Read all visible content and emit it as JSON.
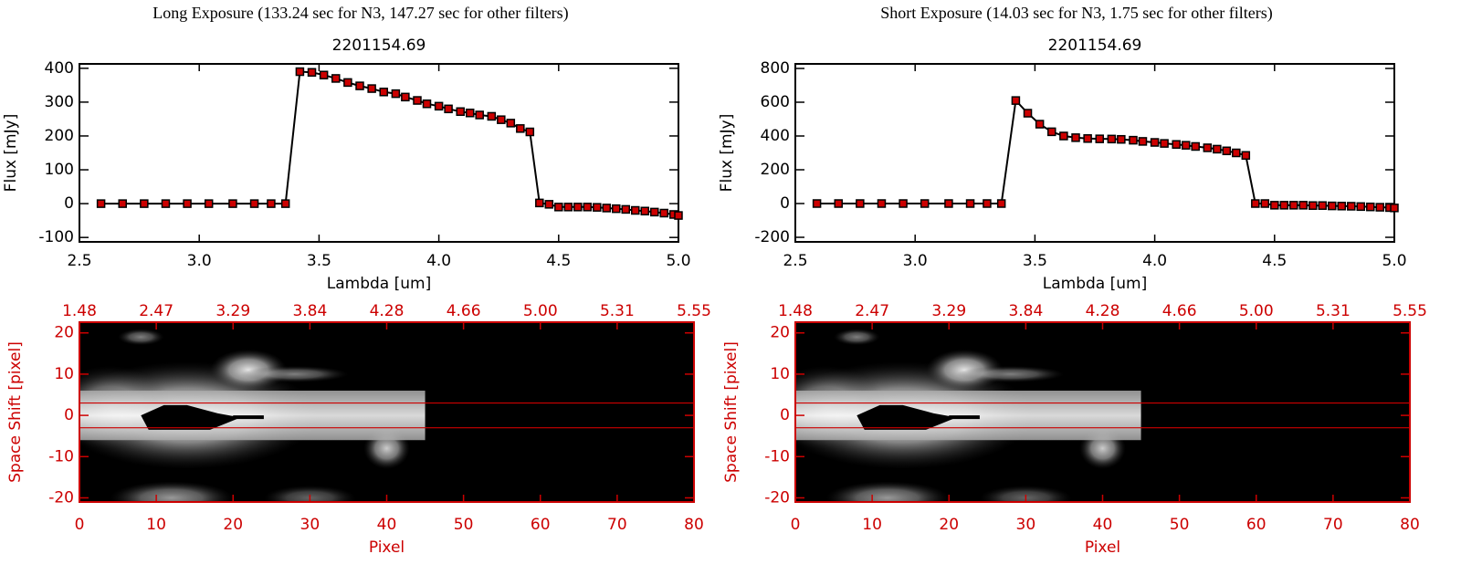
{
  "chart_data": [
    {
      "type": "line",
      "panel_title": "Long Exposure (133.24 sec for N3, 147.27 sec for other filters)",
      "title": "2201154.69",
      "xlabel": "Lambda [um]",
      "ylabel": "Flux [mJy]",
      "color": "#cc0000",
      "line_color": "#000000",
      "xlim": [
        2.5,
        5.0
      ],
      "xticks": [
        2.5,
        {
          "value": 3,
          "label": "3.0"
        },
        3.5,
        {
          "value": 4,
          "label": "4.0"
        },
        4.5,
        {
          "value": 5,
          "label": "5.0"
        }
      ],
      "ylim": [
        -113,
        413
      ],
      "yticks": [
        -100,
        0,
        100,
        200,
        300,
        400
      ],
      "x": [
        2.59,
        2.68,
        2.77,
        2.86,
        2.95,
        3.04,
        3.14,
        3.23,
        3.3,
        3.36,
        3.42,
        3.47,
        3.52,
        3.57,
        3.62,
        3.67,
        3.72,
        3.77,
        3.82,
        3.86,
        3.91,
        3.95,
        4.0,
        4.04,
        4.09,
        4.13,
        4.17,
        4.22,
        4.26,
        4.3,
        4.34,
        4.38,
        4.42,
        4.46,
        4.5,
        4.54,
        4.58,
        4.62,
        4.66,
        4.7,
        4.74,
        4.78,
        4.82,
        4.86,
        4.9,
        4.94,
        4.98,
        5.0
      ],
      "values": [
        0,
        0,
        0,
        0,
        0,
        0,
        0,
        0,
        0,
        0,
        390,
        388,
        380,
        370,
        358,
        348,
        340,
        330,
        325,
        315,
        305,
        295,
        288,
        280,
        272,
        268,
        262,
        258,
        248,
        238,
        222,
        212,
        2,
        -2,
        -10,
        -10,
        -10,
        -10,
        -11,
        -13,
        -15,
        -17,
        -20,
        -22,
        -25,
        -28,
        -32,
        -35
      ]
    },
    {
      "type": "line",
      "panel_title": "Short Exposure (14.03 sec for N3, 1.75 sec for other filters)",
      "title": "2201154.69",
      "xlabel": "Lambda [um]",
      "ylabel": "Flux [mJy]",
      "color": "#cc0000",
      "line_color": "#000000",
      "xlim": [
        2.5,
        5.0
      ],
      "xticks": [
        2.5,
        {
          "value": 3,
          "label": "3.0"
        },
        3.5,
        {
          "value": 4,
          "label": "4.0"
        },
        4.5,
        {
          "value": 5,
          "label": "5.0"
        }
      ],
      "ylim": [
        -227,
        827
      ],
      "yticks": [
        -200,
        0,
        200,
        400,
        600,
        800
      ],
      "x": [
        2.59,
        2.68,
        2.77,
        2.86,
        2.95,
        3.04,
        3.14,
        3.23,
        3.3,
        3.36,
        3.42,
        3.47,
        3.52,
        3.57,
        3.62,
        3.67,
        3.72,
        3.77,
        3.82,
        3.86,
        3.91,
        3.95,
        4.0,
        4.04,
        4.09,
        4.13,
        4.17,
        4.22,
        4.26,
        4.3,
        4.34,
        4.38,
        4.42,
        4.46,
        4.5,
        4.54,
        4.58,
        4.62,
        4.66,
        4.7,
        4.74,
        4.78,
        4.82,
        4.86,
        4.9,
        4.94,
        4.98,
        5.0
      ],
      "values": [
        0,
        0,
        0,
        0,
        0,
        0,
        0,
        0,
        0,
        0,
        610,
        535,
        470,
        425,
        400,
        390,
        385,
        383,
        382,
        380,
        375,
        368,
        362,
        356,
        350,
        345,
        338,
        330,
        322,
        312,
        300,
        285,
        0,
        0,
        -10,
        -10,
        -10,
        -10,
        -12,
        -12,
        -14,
        -15,
        -16,
        -18,
        -20,
        -22,
        -24,
        -26
      ]
    },
    {
      "type": "image",
      "xlabel": "Pixel",
      "ylabel": "Space Shift [pixel]",
      "color": "#cc0000",
      "xlim": [
        0,
        80
      ],
      "xticks": [
        0,
        10,
        20,
        30,
        40,
        50,
        60,
        70,
        80
      ],
      "x2ticks": [
        {
          "value": 0,
          "label": "1.48"
        },
        {
          "value": 10,
          "label": "2.47"
        },
        {
          "value": 20,
          "label": "3.29"
        },
        {
          "value": 30,
          "label": "3.84"
        },
        {
          "value": 40,
          "label": "4.28"
        },
        {
          "value": 50,
          "label": "4.66"
        },
        {
          "value": 60,
          "label": "5.00"
        },
        {
          "value": 70,
          "label": "5.31"
        },
        {
          "value": 80,
          "label": "5.55"
        }
      ],
      "ylim": [
        -21,
        22.6
      ],
      "yticks": [
        -20,
        -10,
        0,
        10,
        20
      ],
      "hlines": [
        3,
        -3
      ]
    },
    {
      "type": "image",
      "xlabel": "Pixel",
      "ylabel": "Space Shift [pixel]",
      "color": "#cc0000",
      "xlim": [
        0,
        80
      ],
      "xticks": [
        0,
        10,
        20,
        30,
        40,
        50,
        60,
        70,
        80
      ],
      "x2ticks": [
        {
          "value": 0,
          "label": "1.48"
        },
        {
          "value": 10,
          "label": "2.47"
        },
        {
          "value": 20,
          "label": "3.29"
        },
        {
          "value": 30,
          "label": "3.84"
        },
        {
          "value": 40,
          "label": "4.28"
        },
        {
          "value": 50,
          "label": "4.66"
        },
        {
          "value": 60,
          "label": "5.00"
        },
        {
          "value": 70,
          "label": "5.31"
        },
        {
          "value": 80,
          "label": "5.55"
        }
      ],
      "ylim": [
        -21,
        22.6
      ],
      "yticks": [
        -20,
        -10,
        0,
        10,
        20
      ],
      "hlines": [
        3,
        -3
      ]
    }
  ]
}
